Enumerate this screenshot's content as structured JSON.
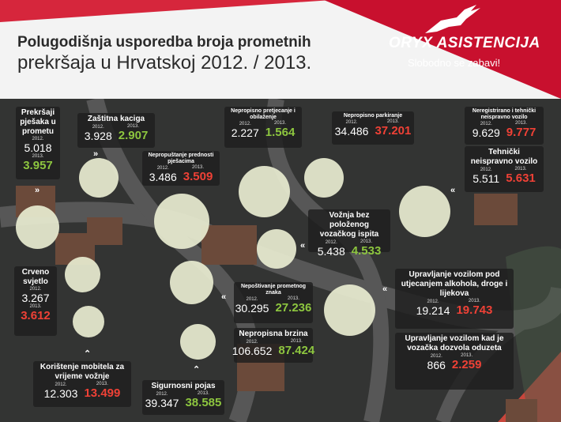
{
  "header": {
    "title_line1": "Polugodišnja usporedba broja prometnih",
    "title_line2": "prekršaja u Hrvatskoj 2012. / 2013.",
    "logo": "ORYX ASISTENCIJA",
    "slogan": "Slobodno se zabavi!"
  },
  "colors": {
    "red": "#c8102e",
    "green": "#8dc63f",
    "up": "#ef4136"
  },
  "year_a": "2012.",
  "year_b": "2013.",
  "items": {
    "pjesaci": {
      "label": "Prekršaji pješaka u prometu",
      "v2012": "5.018",
      "v2013": "3.957"
    },
    "kaciga": {
      "label": "Zaštitna kaciga",
      "v2012": "3.928",
      "v2013": "2.907"
    },
    "prednost": {
      "label": "Nepropuštanje prednosti pješacima",
      "v2012": "3.486",
      "v2013": "3.509"
    },
    "pretjecanje": {
      "label": "Nepropisno pretjecanje i obilaženje",
      "v2012": "2.227",
      "v2013": "1.564"
    },
    "parkiranje": {
      "label": "Nepropisno parkiranje",
      "v2012": "34.486",
      "v2013": "37.201"
    },
    "neregistrirano": {
      "label": "Neregistrirano i tehnički neispravno vozilo",
      "v2012": "9.629",
      "v2013": "9.777"
    },
    "tehnicki": {
      "label": "Tehnički neispravno vozilo",
      "v2012": "5.511",
      "v2013": "5.631"
    },
    "ispit": {
      "label": "Vožnja bez položenog vozačkog ispita",
      "v2012": "5.438",
      "v2013": "4.533"
    },
    "crveno": {
      "label": "Crveno svjetlo",
      "v2012": "3.267",
      "v2013": "3.612"
    },
    "znak": {
      "label": "Nepoštivanje prometnog znaka",
      "v2012": "30.295",
      "v2013": "27.236"
    },
    "brzina": {
      "label": "Nepropisna brzina",
      "v2012": "106.652",
      "v2013": "87.424"
    },
    "alkohol": {
      "label": "Upravljanje vozilom pod utjecanjem alkohola, droge i lijekova",
      "v2012": "19.214",
      "v2013": "19.743"
    },
    "dozvola": {
      "label": "Upravljanje vozilom kad je vozačka dozvola oduzeta",
      "v2012": "866",
      "v2013": "2.259"
    },
    "mobitel": {
      "label": "Korištenje mobitela za vrijeme vožnje",
      "v2012": "12.303",
      "v2013": "13.499"
    },
    "pojas": {
      "label": "Sigurnosni pojas",
      "v2012": "39.347",
      "v2013": "38.585"
    }
  }
}
